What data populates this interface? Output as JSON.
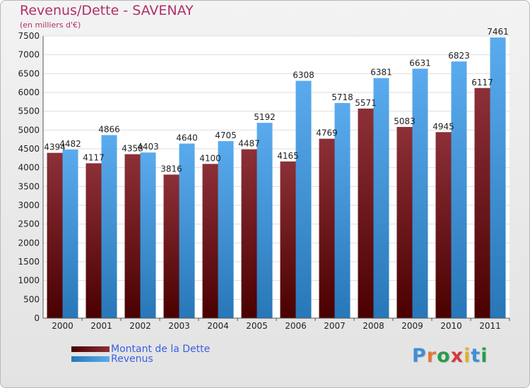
{
  "chart_data": {
    "type": "bar",
    "title": "Revenus/Dette - SAVENAY",
    "subtitle": "(en milliers d'€)",
    "categories": [
      "2000",
      "2001",
      "2002",
      "2003",
      "2004",
      "2005",
      "2006",
      "2007",
      "2008",
      "2009",
      "2010",
      "2011"
    ],
    "series": [
      {
        "name": "Montant de la Dette",
        "color": "#7a2328",
        "values": [
          4394,
          4117,
          4358,
          3816,
          4100,
          4487,
          4165,
          4769,
          5571,
          5083,
          4945,
          6117
        ],
        "labels": [
          "4394",
          "4117",
          "4358",
          "3816",
          "4100",
          "4487",
          "4165",
          "4769",
          "5571",
          "5083",
          "4945",
          "6117"
        ]
      },
      {
        "name": "Revenus",
        "color": "#4aa3e8",
        "values": [
          4482,
          4866,
          4403,
          4640,
          4705,
          5192,
          6308,
          5718,
          6381,
          6631,
          6823,
          7461
        ],
        "labels": [
          "4482",
          "4866",
          "4403",
          "4640",
          "4705",
          "5192",
          "6308",
          "5718",
          "6381",
          "6631",
          "6823",
          "7461"
        ]
      }
    ],
    "ylim": [
      0,
      7500
    ],
    "yticks": [
      "0",
      "500",
      "1000",
      "1500",
      "2000",
      "2500",
      "3000",
      "3500",
      "4000",
      "4500",
      "5000",
      "5500",
      "6000",
      "6500",
      "7000",
      "7500"
    ],
    "grid": true,
    "legend_position": "bottom-left"
  },
  "legend": {
    "debt_label": "Montant de la Dette",
    "revenue_label": "Revenus"
  },
  "brand": {
    "letters": [
      "P",
      "r",
      "o",
      "x",
      "i",
      "t",
      "i"
    ]
  }
}
